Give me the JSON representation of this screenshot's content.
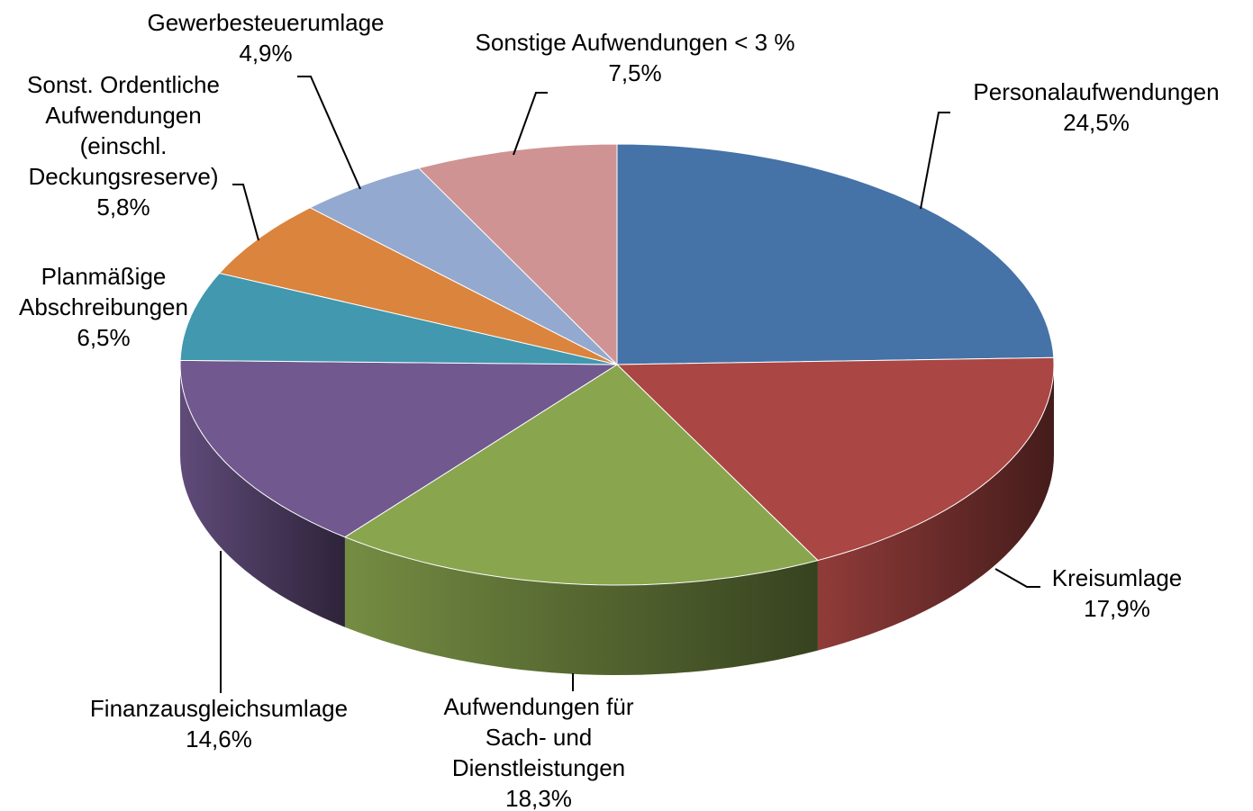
{
  "chart_data": {
    "type": "pie",
    "categories": [
      "Personalaufwendungen",
      "Kreisumlage",
      "Aufwendungen für Sach- und Dienstleistungen",
      "Finanzausgleichsumlage",
      "Planmäßige Abschreibungen",
      "Sonst. Ordentliche Aufwendungen (einschl. Deckungsreserve)",
      "Gewerbesteuerumlage",
      "Sonstige Aufwendungen < 3 %"
    ],
    "values": [
      24.5,
      17.9,
      18.3,
      14.6,
      6.5,
      5.8,
      4.9,
      7.5
    ],
    "value_labels": [
      "24,5%",
      "17,9%",
      "18,3%",
      "14,6%",
      "6,5%",
      "5,8%",
      "4,9%",
      "7,5%"
    ],
    "colors": [
      "#4572a7",
      "#aa4643",
      "#89a54e",
      "#71588f",
      "#4198af",
      "#db843d",
      "#93a9cf",
      "#d09393"
    ]
  }
}
